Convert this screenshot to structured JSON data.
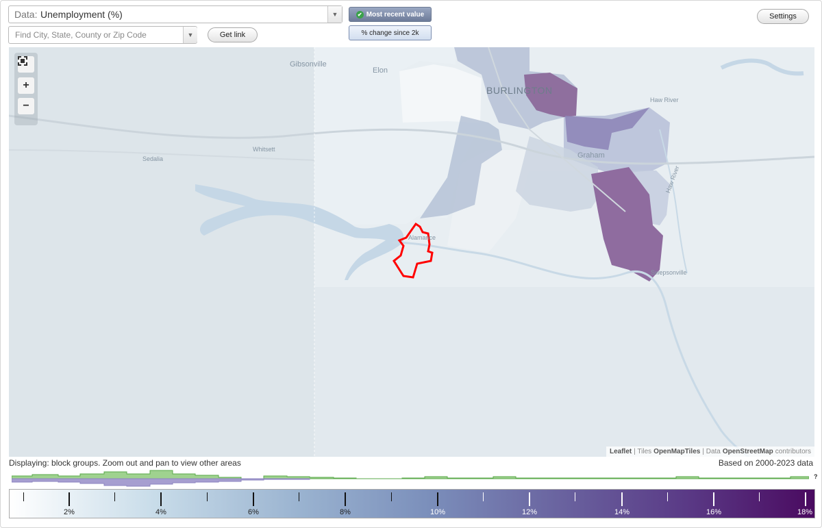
{
  "data_select": {
    "label": "Data:",
    "value": "Unemployment (%)"
  },
  "search": {
    "placeholder": "Find City, State, County or Zip Code"
  },
  "buttons": {
    "get_link": "Get link",
    "most_recent": "Most recent value",
    "pct_change": "% change since 2k",
    "settings": "Settings"
  },
  "map": {
    "places": {
      "gibsonville": "Gibsonville",
      "elon": "Elon",
      "burlington": "BURLINGTON",
      "haw_river": "Haw River",
      "whitsett": "Whitsett",
      "sedalia": "Sedalia",
      "graham": "Graham",
      "swepsonville": "Swepsonville",
      "haw_river_label": "Haw River",
      "alamance": "Alamance"
    },
    "attribution": {
      "leaflet": "Leaflet",
      "tiles_prefix": "| Tiles",
      "tiles": "OpenMapTiles",
      "data_prefix": "| Data",
      "data": "OpenStreetMap",
      "suffix": "contributors"
    }
  },
  "footer": {
    "displaying": "Displaying: block groups. Zoom out and pan to view other areas",
    "based_on": "Based on 2000-2023 data",
    "histogram_unknown": "?"
  },
  "legend": {
    "labels": [
      "2%",
      "4%",
      "6%",
      "8%",
      "10%",
      "12%",
      "14%",
      "16%",
      "18%"
    ]
  },
  "colors": {
    "highlight": "#ff0000",
    "scale_low": "#ffffff",
    "scale_high": "#4a0a60",
    "histogram_current": "#7bc56c",
    "histogram_2000": "#9b93c9"
  }
}
